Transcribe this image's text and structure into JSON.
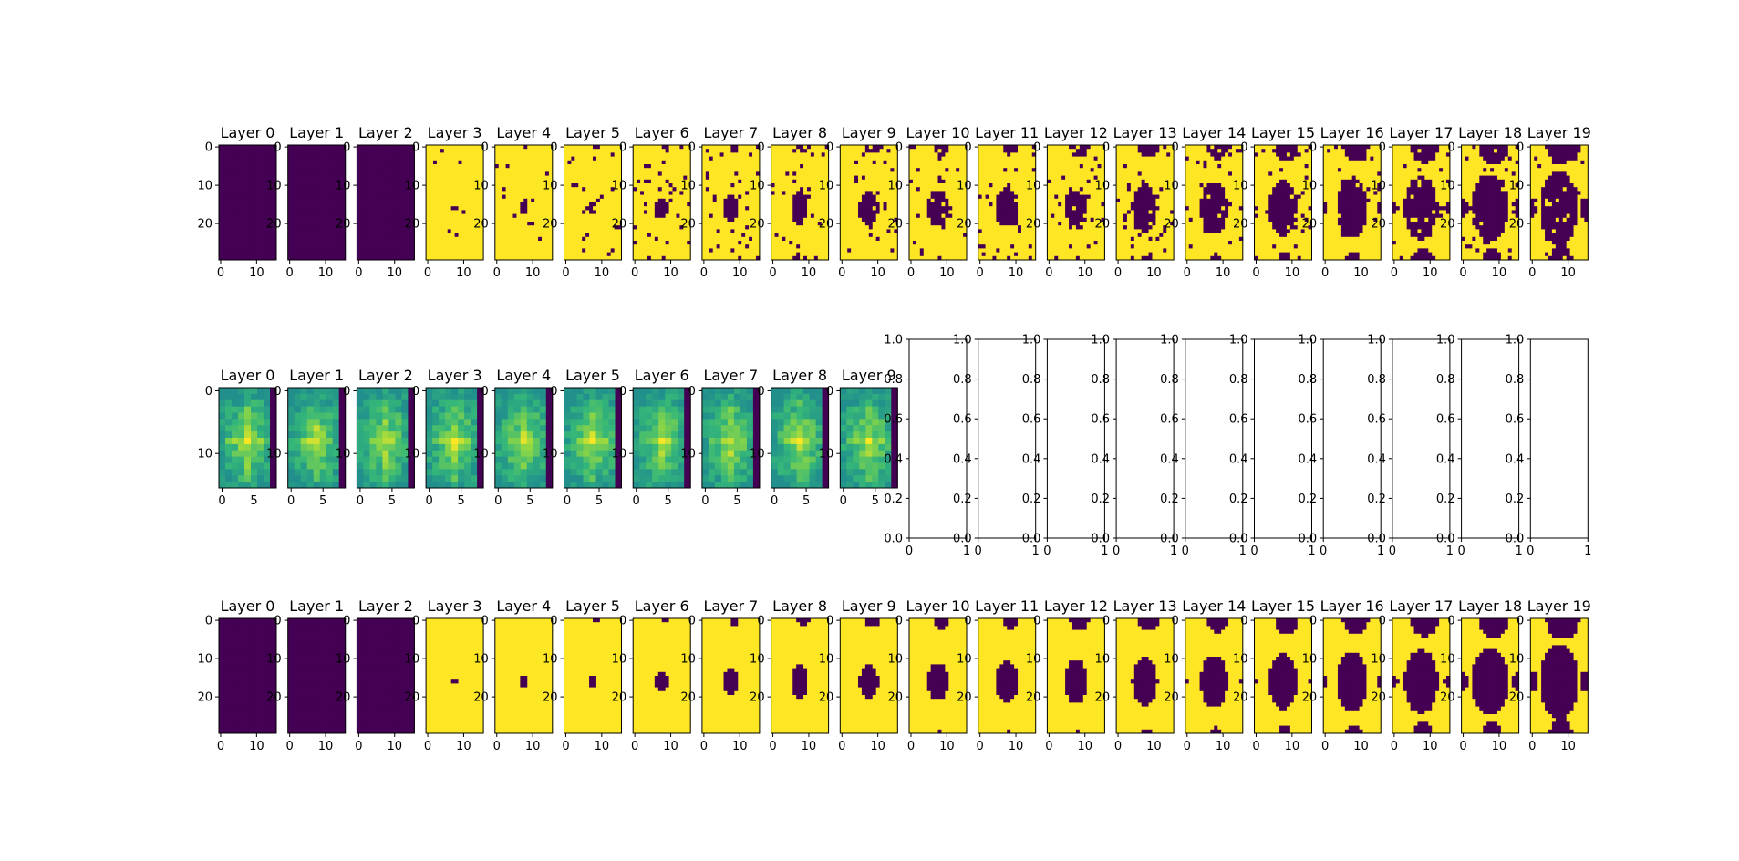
{
  "figure": {
    "rows": 3,
    "cols": 20,
    "colormap": "viridis",
    "colors": {
      "low": "#440154",
      "high": "#fde725",
      "axis": "#000000",
      "background": "#ffffff"
    }
  },
  "chart_data": [
    {
      "type": "heatmap",
      "row": 0,
      "panel_titles": [
        "Layer 0",
        "Layer 1",
        "Layer 2",
        "Layer 3",
        "Layer 4",
        "Layer 5",
        "Layer 6",
        "Layer 7",
        "Layer 8",
        "Layer 9",
        "Layer 10",
        "Layer 11",
        "Layer 12",
        "Layer 13",
        "Layer 14",
        "Layer 15",
        "Layer 16",
        "Layer 17",
        "Layer 18",
        "Layer 19"
      ],
      "grid_shape": [
        30,
        16
      ],
      "xticks": [
        0,
        10
      ],
      "yticks": [
        0,
        10,
        20
      ],
      "description": "binary masks (0/1); layers 0-2 all zero; from layer 3 a yellow field with a central dark blob that grows over layers, plus top/bottom dark notches",
      "blob_radius_per_layer": [
        0,
        0,
        0,
        0.6,
        0.9,
        1.3,
        1.8,
        2.2,
        2.6,
        2.9,
        3.1,
        3.4,
        3.6,
        3.9,
        4.2,
        4.5,
        4.8,
        5.2,
        5.6,
        6.0
      ],
      "noise_per_layer": [
        0,
        0,
        0,
        0.02,
        0.03,
        0.04,
        0.05,
        0.05,
        0.06,
        0.06,
        0.06,
        0.06,
        0.07,
        0.06,
        0.06,
        0.05,
        0.05,
        0.05,
        0.05,
        0.04
      ]
    },
    {
      "type": "heatmap",
      "row": 1,
      "panel_titles": [
        "Layer 0",
        "Layer 1",
        "Layer 2",
        "Layer 3",
        "Layer 4",
        "Layer 5",
        "Layer 6",
        "Layer 7",
        "Layer 8",
        "Layer 9"
      ],
      "grid_shape": [
        16,
        9
      ],
      "xticks": [
        0,
        5
      ],
      "yticks": [
        0,
        10
      ],
      "description": "continuous values, mostly green-yellow with a bright centre and a dark last column",
      "empty_axes": {
        "count": 10,
        "xlim": [
          0,
          1
        ],
        "ylim": [
          0,
          1
        ],
        "xticks": [
          "0",
          "1"
        ],
        "yticks": [
          "0.0",
          "0.2",
          "0.4",
          "0.6",
          "0.8",
          "1.0"
        ]
      }
    },
    {
      "type": "heatmap",
      "row": 2,
      "panel_titles": [
        "Layer 0",
        "Layer 1",
        "Layer 2",
        "Layer 3",
        "Layer 4",
        "Layer 5",
        "Layer 6",
        "Layer 7",
        "Layer 8",
        "Layer 9",
        "Layer 10",
        "Layer 11",
        "Layer 12",
        "Layer 13",
        "Layer 14",
        "Layer 15",
        "Layer 16",
        "Layer 17",
        "Layer 18",
        "Layer 19"
      ],
      "grid_shape": [
        30,
        16
      ],
      "xticks": [
        0,
        10
      ],
      "yticks": [
        0,
        10,
        20
      ],
      "description": "same progression as row 0 but without speckle noise",
      "blob_radius_per_layer": [
        0,
        0,
        0,
        0.6,
        0.9,
        1.3,
        1.8,
        2.2,
        2.6,
        2.9,
        3.1,
        3.4,
        3.6,
        3.9,
        4.2,
        4.5,
        4.8,
        5.2,
        5.6,
        6.0
      ],
      "noise_per_layer": [
        0,
        0,
        0,
        0,
        0,
        0,
        0,
        0,
        0,
        0,
        0,
        0,
        0,
        0,
        0,
        0,
        0,
        0,
        0,
        0
      ]
    }
  ]
}
